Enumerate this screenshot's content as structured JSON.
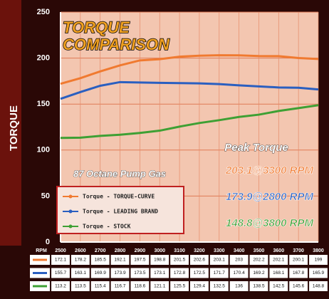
{
  "chart_data": {
    "type": "line",
    "title": [
      "TORQUE",
      "COMPARISON"
    ],
    "y_label": "TORQUE",
    "x_label": "RPM",
    "annotations": {
      "fuel": "87 Octane Pump Gas",
      "peak_title": "Peak Torque"
    },
    "x": [
      2500,
      2600,
      2700,
      2800,
      2900,
      3000,
      3100,
      3200,
      3300,
      3400,
      3500,
      3600,
      3700,
      3800
    ],
    "xlim": [
      2500,
      3800
    ],
    "xticks": [
      2500,
      2600,
      2700,
      2800,
      2900,
      3000,
      3100,
      3200,
      3300,
      3400,
      3500,
      3600,
      3700,
      3800
    ],
    "ylim": [
      0,
      250
    ],
    "yticks": [
      0,
      50,
      100,
      150,
      200,
      250
    ],
    "grid": true,
    "series": [
      {
        "name": "Torque - TORQUE-CURVE",
        "color": "#f07a30",
        "peak_label": "203.1@3300 RPM",
        "values": [
          172.1,
          178.2,
          185.5,
          192.1,
          197.5,
          198.8,
          201.5,
          202.6,
          203.1,
          203,
          202.2,
          202.1,
          200.1,
          199
        ]
      },
      {
        "name": "Torque - LEADING BRAND",
        "color": "#2a5fc0",
        "peak_label": "173.9@2800 RPM",
        "values": [
          155.7,
          163.1,
          169.9,
          173.9,
          173.5,
          173.1,
          172.8,
          172.5,
          171.7,
          170.4,
          169.2,
          168.1,
          167.8,
          165.9
        ]
      },
      {
        "name": "Torque - STOCK",
        "color": "#3ea034",
        "peak_label": "148.8@3800 RPM",
        "values": [
          113.2,
          113.5,
          115.4,
          116.7,
          118.6,
          121.1,
          125.5,
          129.4,
          132.5,
          136,
          138.5,
          142.5,
          145.6,
          148.8
        ]
      }
    ]
  }
}
